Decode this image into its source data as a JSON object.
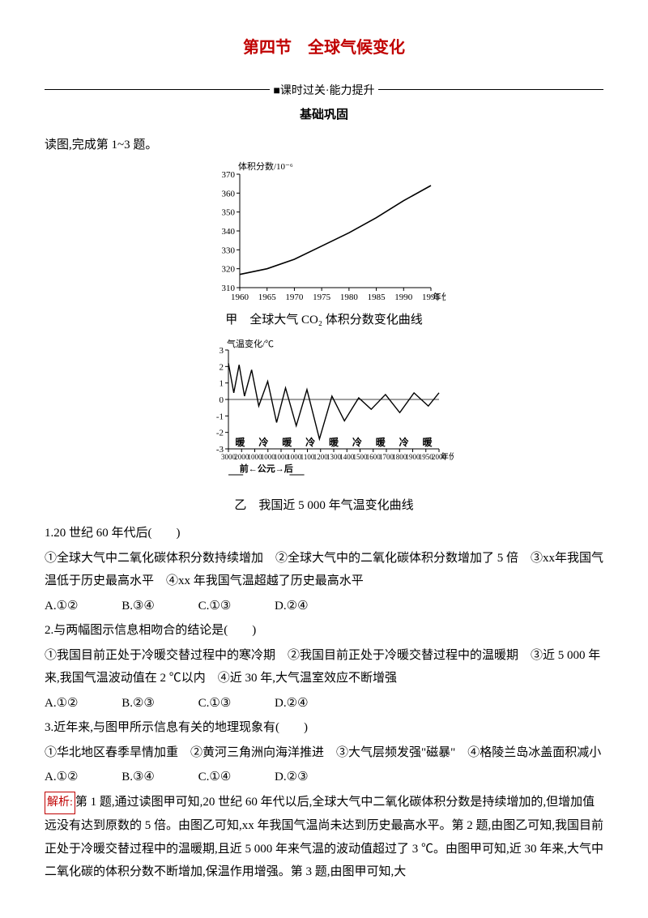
{
  "title": "第四节　全球气候变化",
  "subline": "■课时过关·能力提升",
  "section": "基础巩固",
  "intro": "读图,完成第 1~3 题。",
  "fig1": {
    "ylabel": "体积分数/10⁻⁶",
    "xlabel_right": "年份",
    "yticks": [
      310,
      320,
      330,
      340,
      350,
      360,
      370
    ],
    "xticks": [
      1960,
      1965,
      1970,
      1975,
      1980,
      1985,
      1990,
      1995
    ],
    "curve": [
      [
        1960,
        317
      ],
      [
        1965,
        320
      ],
      [
        1970,
        325
      ],
      [
        1975,
        332
      ],
      [
        1980,
        339
      ],
      [
        1985,
        347
      ],
      [
        1990,
        356
      ],
      [
        1995,
        364
      ]
    ],
    "ylim": [
      310,
      370
    ],
    "caption": "甲　全球大气 CO₂ 体积分数变化曲线",
    "axis_color": "#000000",
    "line_color": "#000000",
    "font_size": 11
  },
  "fig2": {
    "ylabel": "气温变化/℃",
    "yticks": [
      -3,
      -2,
      -1,
      0,
      1,
      2,
      3
    ],
    "row_labels": [
      "暖",
      "冷",
      "暖",
      "冷",
      "暖",
      "冷",
      "暖",
      "冷",
      "暖"
    ],
    "xticks_top": [
      "3000",
      "2000",
      "1000",
      "1000",
      "1000",
      "1000",
      "1100",
      "1200",
      "1300",
      "1400",
      "1500",
      "1600",
      "1700",
      "1800",
      "1900",
      "1950",
      "2000"
    ],
    "xleft": "前←公元→后",
    "xright": "年份",
    "curve": [
      [
        0,
        2.2
      ],
      [
        6,
        0.4
      ],
      [
        12,
        2.1
      ],
      [
        18,
        0.2
      ],
      [
        26,
        1.8
      ],
      [
        34,
        -0.4
      ],
      [
        44,
        1.1
      ],
      [
        54,
        -1.4
      ],
      [
        64,
        0.7
      ],
      [
        76,
        -1.6
      ],
      [
        88,
        0.6
      ],
      [
        102,
        -2.4
      ],
      [
        116,
        0.2
      ],
      [
        130,
        -1.3
      ],
      [
        146,
        0.1
      ],
      [
        160,
        -0.6
      ],
      [
        176,
        0.3
      ],
      [
        192,
        -0.8
      ],
      [
        208,
        0.4
      ],
      [
        224,
        -0.4
      ],
      [
        236,
        0.4
      ]
    ],
    "ylim": [
      -3,
      3
    ],
    "caption": "乙　我国近 5 000 年气温变化曲线",
    "axis_color": "#000000",
    "line_color": "#000000",
    "font_size": 11
  },
  "q1": {
    "stem": "1.20 世纪 60 年代后(　　)",
    "items": "①全球大气中二氧化碳体积分数持续增加　②全球大气中的二氧化碳体积分数增加了 5 倍　③xx年我国气温低于历史最高水平　④xx 年我国气温超越了历史最高水平",
    "A": "A.①②",
    "B": "B.③④",
    "C": "C.①③",
    "D": "D.②④"
  },
  "q2": {
    "stem": "2.与两幅图示信息相吻合的结论是(　　)",
    "items": "①我国目前正处于冷暖交替过程中的寒冷期　②我国目前正处于冷暖交替过程中的温暖期　③近 5 000 年来,我国气温波动值在 2 ℃以内　④近 30 年,大气温室效应不断增强",
    "A": "A.①②",
    "B": "B.②③",
    "C": "C.①③",
    "D": "D.②④"
  },
  "q3": {
    "stem": "3.近年来,与图甲所示信息有关的地理现象有(　　)",
    "items": "①华北地区春季旱情加重　②黄河三角洲向海洋推进　③大气层频发强\"磁暴\"　④格陵兰岛冰盖面积减小",
    "A": "A.①②",
    "B": "B.③④",
    "C": "C.①④",
    "D": "D.②③"
  },
  "analysis_label": "解析:",
  "analysis": "第 1 题,通过读图甲可知,20 世纪 60 年代以后,全球大气中二氧化碳体积分数是持续增加的,但增加值远没有达到原数的 5 倍。由图乙可知,xx 年我国气温尚未达到历史最高水平。第 2 题,由图乙可知,我国目前正处于冷暖交替过程中的温暖期,且近 5 000 年来气温的波动值超过了 3 ℃。由图甲可知,近 30 年来,大气中二氧化碳的体积分数不断增加,保温作用增强。第 3 题,由图甲可知,大"
}
